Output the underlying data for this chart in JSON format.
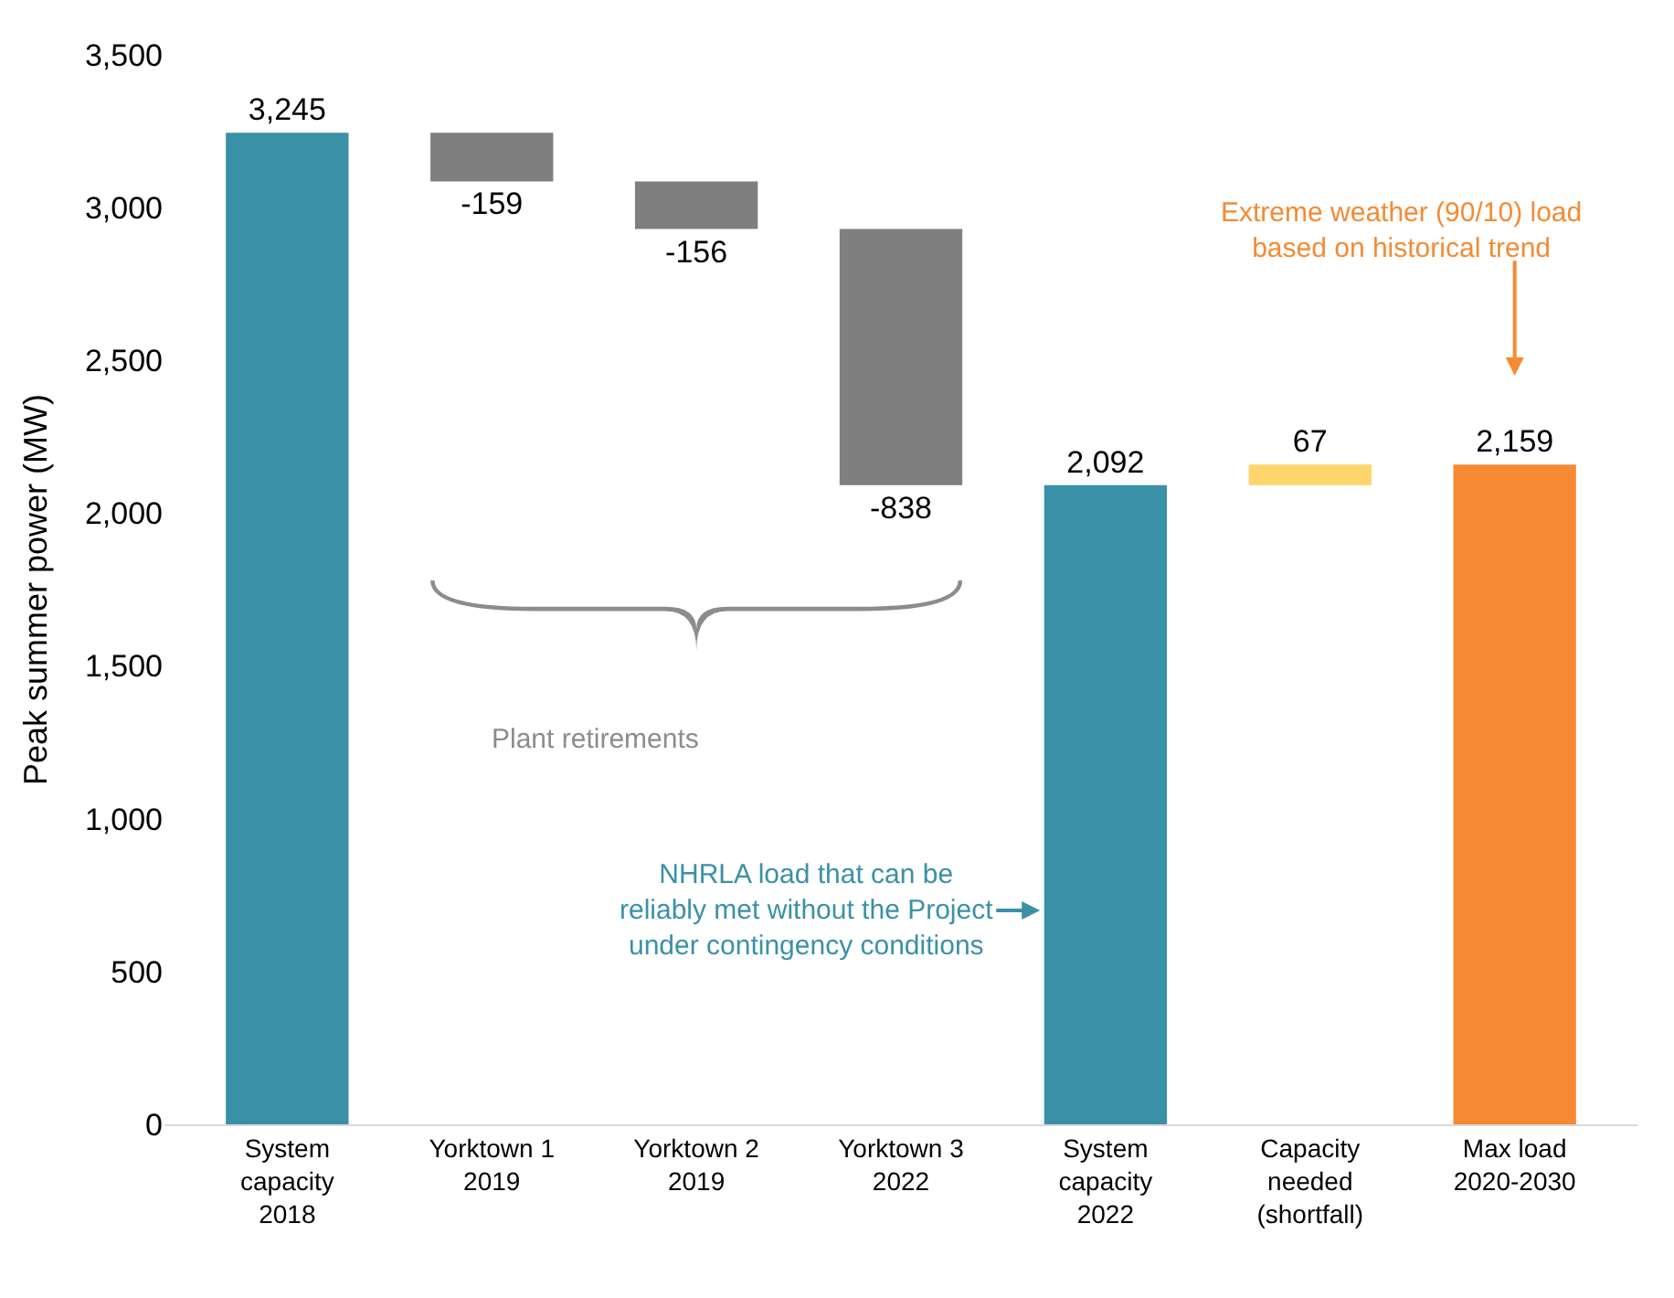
{
  "chart_data": {
    "type": "bar",
    "ylabel": "Peak summer power (MW)",
    "categories": [
      "System\ncapacity\n2018",
      "Yorktown 1\n2019",
      "Yorktown 2\n2019",
      "Yorktown 3\n2022",
      "System\ncapacity\n2022",
      "Capacity\nneeded\n(shortfall)",
      "Max load\n2020-2030"
    ],
    "values": [
      3245,
      -159,
      -156,
      -838,
      2092,
      67,
      2159
    ],
    "base": [
      0,
      3245,
      3086,
      2930,
      0,
      2092,
      0
    ],
    "colors": [
      "#3a91a7",
      "#7f7f7f",
      "#7f7f7f",
      "#7f7f7f",
      "#3a91a7",
      "#fdd56c",
      "#f58a33"
    ],
    "value_labels": [
      "3,245",
      "-159",
      "-156",
      "-838",
      "2,092",
      "67",
      "2,159"
    ],
    "ylim": [
      0,
      3500
    ],
    "yticks": [
      0,
      500,
      {
        "value": 1000,
        "label": "1,000"
      },
      {
        "value": 1500,
        "label": "1,500"
      },
      {
        "value": 2000,
        "label": "2,000"
      },
      {
        "value": 2500,
        "label": "2,500"
      },
      {
        "value": 3000,
        "label": "3,000"
      },
      {
        "value": 3500,
        "label": "3,500"
      }
    ],
    "annotations": [
      "Plant retirements",
      "NHRLA load that can be\nreliably met without the Project\nunder contingency conditions",
      "Extreme weather (90/10) load\nbased on historical trend"
    ],
    "legend": false
  }
}
